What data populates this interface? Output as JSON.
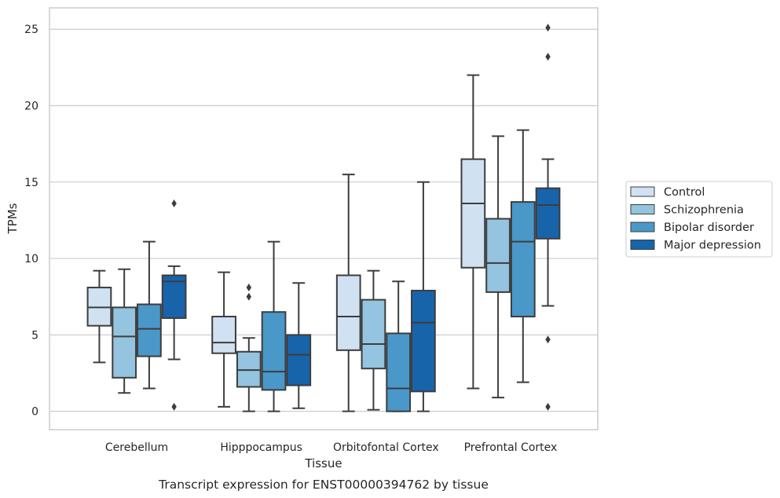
{
  "caption": "Transcript expression for ENST00000394762 by tissue",
  "colors": {
    "series": [
      "#d0e1f2",
      "#94c4df",
      "#4a98c9",
      "#1764ab"
    ],
    "box_edge": "#3d3d3d",
    "grid": "#cccccc",
    "frame": "#cccccc"
  },
  "chart_data": {
    "type": "box",
    "xlabel": "Tissue",
    "ylabel": "TPMs",
    "ylim": [
      -1.2,
      26.4
    ],
    "yticks": [
      0,
      5,
      10,
      15,
      20,
      25
    ],
    "grid": "horizontal",
    "legend_placement": "right",
    "categories": [
      "Cerebellum",
      "Hipppocampus",
      "Orbitofontal Cortex",
      "Prefrontal Cortex"
    ],
    "series": [
      {
        "name": "Control",
        "boxes": [
          {
            "whislo": 3.2,
            "q1": 5.6,
            "med": 6.8,
            "q3": 8.1,
            "whishi": 9.2,
            "fliers": []
          },
          {
            "whislo": 0.3,
            "q1": 3.8,
            "med": 4.5,
            "q3": 6.2,
            "whishi": 9.1,
            "fliers": []
          },
          {
            "whislo": 0.0,
            "q1": 4.0,
            "med": 6.2,
            "q3": 8.9,
            "whishi": 15.5,
            "fliers": []
          },
          {
            "whislo": 1.5,
            "q1": 9.4,
            "med": 13.6,
            "q3": 16.5,
            "whishi": 22.0,
            "fliers": []
          }
        ]
      },
      {
        "name": "Schizophrenia",
        "boxes": [
          {
            "whislo": 1.2,
            "q1": 2.2,
            "med": 4.9,
            "q3": 6.8,
            "whishi": 9.3,
            "fliers": []
          },
          {
            "whislo": 0.0,
            "q1": 1.6,
            "med": 2.7,
            "q3": 3.9,
            "whishi": 4.8,
            "fliers": [
              7.5,
              8.1
            ]
          },
          {
            "whislo": 0.1,
            "q1": 2.8,
            "med": 4.4,
            "q3": 7.3,
            "whishi": 9.2,
            "fliers": []
          },
          {
            "whislo": 0.9,
            "q1": 7.8,
            "med": 9.7,
            "q3": 12.6,
            "whishi": 18.0,
            "fliers": []
          }
        ]
      },
      {
        "name": "Bipolar disorder",
        "boxes": [
          {
            "whislo": 1.5,
            "q1": 3.6,
            "med": 5.4,
            "q3": 7.0,
            "whishi": 11.1,
            "fliers": []
          },
          {
            "whislo": 0.0,
            "q1": 1.4,
            "med": 2.6,
            "q3": 6.5,
            "whishi": 11.1,
            "fliers": []
          },
          {
            "whislo": 0.0,
            "q1": 0.0,
            "med": 1.5,
            "q3": 5.1,
            "whishi": 8.5,
            "fliers": []
          },
          {
            "whislo": 1.9,
            "q1": 6.2,
            "med": 11.1,
            "q3": 13.7,
            "whishi": 18.4,
            "fliers": []
          }
        ]
      },
      {
        "name": "Major depression",
        "boxes": [
          {
            "whislo": 3.4,
            "q1": 6.1,
            "med": 8.5,
            "q3": 8.9,
            "whishi": 9.5,
            "fliers": [
              0.3,
              13.6
            ]
          },
          {
            "whislo": 0.2,
            "q1": 1.7,
            "med": 3.7,
            "q3": 5.0,
            "whishi": 8.4,
            "fliers": []
          },
          {
            "whislo": 0.0,
            "q1": 1.3,
            "med": 5.8,
            "q3": 7.9,
            "whishi": 15.0,
            "fliers": []
          },
          {
            "whislo": 6.9,
            "q1": 11.3,
            "med": 13.5,
            "q3": 14.6,
            "whishi": 16.5,
            "fliers": [
              0.3,
              4.7,
              23.2,
              25.1
            ]
          }
        ]
      }
    ]
  }
}
